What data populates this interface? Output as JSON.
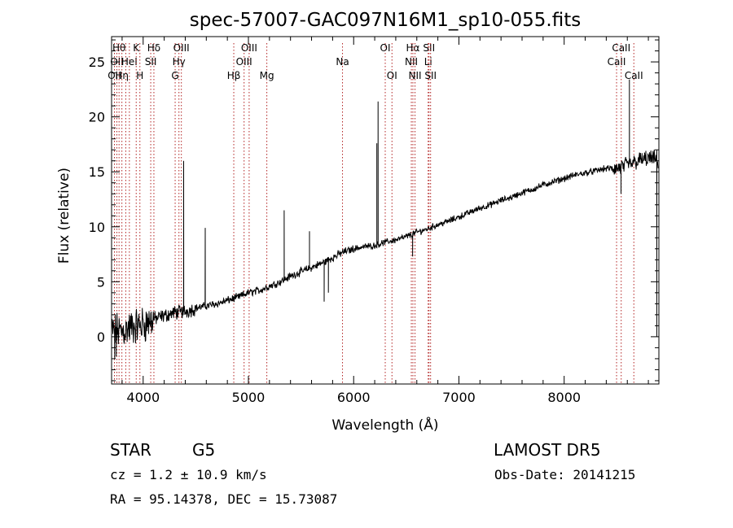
{
  "chart_data": {
    "type": "line",
    "title": "spec-57007-GAC097N16M1_sp10-055.fits",
    "xlabel": "Wavelength (Å)",
    "ylabel": "Flux (relative)",
    "xlim": [
      3700,
      8900
    ],
    "ylim": [
      -4.3,
      27.3
    ],
    "x_ticks": [
      4000,
      5000,
      6000,
      7000,
      8000
    ],
    "y_ticks": [
      0,
      5,
      10,
      15,
      20,
      25
    ],
    "grid": false,
    "line_color": "#000000",
    "marker_color": "#b22222",
    "spectrum_nodes": [
      [
        3700,
        0.5
      ],
      [
        3800,
        0.5
      ],
      [
        3900,
        0.9
      ],
      [
        4000,
        1.1
      ],
      [
        4100,
        1.6
      ],
      [
        4200,
        1.9
      ],
      [
        4300,
        2.2
      ],
      [
        4400,
        2.3
      ],
      [
        4500,
        2.6
      ],
      [
        4600,
        2.8
      ],
      [
        4700,
        3.0
      ],
      [
        4800,
        3.3
      ],
      [
        4900,
        3.6
      ],
      [
        5000,
        4.0
      ],
      [
        5100,
        4.2
      ],
      [
        5200,
        4.6
      ],
      [
        5300,
        5.0
      ],
      [
        5400,
        5.5
      ],
      [
        5500,
        5.9
      ],
      [
        5600,
        6.3
      ],
      [
        5700,
        6.7
      ],
      [
        5800,
        7.2
      ],
      [
        5900,
        7.7
      ],
      [
        6000,
        8.0
      ],
      [
        6100,
        8.2
      ],
      [
        6200,
        8.3
      ],
      [
        6300,
        8.6
      ],
      [
        6400,
        8.8
      ],
      [
        6500,
        9.1
      ],
      [
        6600,
        9.5
      ],
      [
        6700,
        9.8
      ],
      [
        6800,
        10.2
      ],
      [
        6900,
        10.5
      ],
      [
        7000,
        10.9
      ],
      [
        7100,
        11.3
      ],
      [
        7200,
        11.7
      ],
      [
        7300,
        12.0
      ],
      [
        7400,
        12.4
      ],
      [
        7500,
        12.7
      ],
      [
        7600,
        13.1
      ],
      [
        7700,
        13.4
      ],
      [
        7800,
        13.8
      ],
      [
        7900,
        14.1
      ],
      [
        8000,
        14.4
      ],
      [
        8100,
        14.7
      ],
      [
        8200,
        14.9
      ],
      [
        8300,
        15.1
      ],
      [
        8400,
        15.3
      ],
      [
        8500,
        15.3
      ],
      [
        8600,
        15.6
      ],
      [
        8700,
        16.0
      ],
      [
        8800,
        16.2
      ],
      [
        8900,
        16.1
      ]
    ],
    "spikes": [
      {
        "x": 4385,
        "y": 16.0
      },
      {
        "x": 4590,
        "y": 9.9
      },
      {
        "x": 5340,
        "y": 11.5
      },
      {
        "x": 5580,
        "y": 9.6
      },
      {
        "x": 6220,
        "y": 17.6
      },
      {
        "x": 6232,
        "y": 21.4
      },
      {
        "x": 8620,
        "y": 23.4
      }
    ],
    "dips": [
      {
        "x": 3730,
        "y": -2.0
      },
      {
        "x": 3745,
        "y": -1.8
      },
      {
        "x": 5720,
        "y": 3.2
      },
      {
        "x": 5760,
        "y": 4.0
      },
      {
        "x": 6560,
        "y": 7.3
      },
      {
        "x": 8540,
        "y": 13.0
      },
      {
        "x": 8880,
        "y": 0.0
      }
    ],
    "line_markers": [
      {
        "x": 3727,
        "labels": [
          {
            "text": "OII",
            "row": 3
          }
        ]
      },
      {
        "x": 3750,
        "labels": [
          {
            "text": "OII",
            "row": 2
          }
        ]
      },
      {
        "x": 3771,
        "labels": [
          {
            "text": "Hθ",
            "row": 1
          }
        ]
      },
      {
        "x": 3798,
        "labels": [
          {
            "text": "Hη",
            "row": 3
          }
        ]
      },
      {
        "x": 3835,
        "labels": [
          {
            "text": "",
            "row": 0
          }
        ]
      },
      {
        "x": 3869,
        "labels": [
          {
            "text": "HeI",
            "row": 2
          }
        ]
      },
      {
        "x": 3934,
        "labels": [
          {
            "text": "K",
            "row": 1
          }
        ]
      },
      {
        "x": 3969,
        "labels": [
          {
            "text": "H",
            "row": 3
          }
        ]
      },
      {
        "x": 4072,
        "labels": [
          {
            "text": "SII",
            "row": 2
          }
        ]
      },
      {
        "x": 4102,
        "labels": [
          {
            "text": "Hδ",
            "row": 1
          }
        ]
      },
      {
        "x": 4304,
        "labels": [
          {
            "text": "G",
            "row": 3
          }
        ]
      },
      {
        "x": 4340,
        "labels": [
          {
            "text": "Hγ",
            "row": 2
          }
        ]
      },
      {
        "x": 4363,
        "labels": [
          {
            "text": "OIII",
            "row": 1
          }
        ]
      },
      {
        "x": 4861,
        "labels": [
          {
            "text": "Hβ",
            "row": 3
          }
        ]
      },
      {
        "x": 4959,
        "labels": [
          {
            "text": "OIII",
            "row": 2
          }
        ]
      },
      {
        "x": 5007,
        "labels": [
          {
            "text": "OIII",
            "row": 1
          }
        ]
      },
      {
        "x": 5175,
        "labels": [
          {
            "text": "Mg",
            "row": 3
          }
        ]
      },
      {
        "x": 5894,
        "labels": [
          {
            "text": "Na",
            "row": 2
          }
        ]
      },
      {
        "x": 6300,
        "labels": [
          {
            "text": "OI",
            "row": 1
          }
        ]
      },
      {
        "x": 6364,
        "labels": [
          {
            "text": "OI",
            "row": 3
          }
        ]
      },
      {
        "x": 6548,
        "labels": [
          {
            "text": "NII",
            "row": 2
          }
        ]
      },
      {
        "x": 6563,
        "labels": [
          {
            "text": "Hα",
            "row": 1
          }
        ]
      },
      {
        "x": 6583,
        "labels": [
          {
            "text": "NII",
            "row": 3
          }
        ]
      },
      {
        "x": 6708,
        "labels": [
          {
            "text": "Li",
            "row": 2
          }
        ]
      },
      {
        "x": 6716,
        "labels": [
          {
            "text": "SII",
            "row": 1
          }
        ]
      },
      {
        "x": 6731,
        "labels": [
          {
            "text": "SII",
            "row": 3
          }
        ]
      },
      {
        "x": 8498,
        "labels": [
          {
            "text": "CaII",
            "row": 2
          }
        ]
      },
      {
        "x": 8542,
        "labels": [
          {
            "text": "CaII",
            "row": 1
          }
        ]
      },
      {
        "x": 8662,
        "labels": [
          {
            "text": "CaII",
            "row": 3
          }
        ]
      }
    ]
  },
  "info": {
    "class_label": "STAR",
    "subclass_label": "G5",
    "survey": "LAMOST DR5",
    "cz_text": "cz = 1.2 ± 10.9 km/s",
    "obs_date": "Obs-Date: 20141215",
    "coords": "RA =  95.14378, DEC =  15.73087"
  }
}
